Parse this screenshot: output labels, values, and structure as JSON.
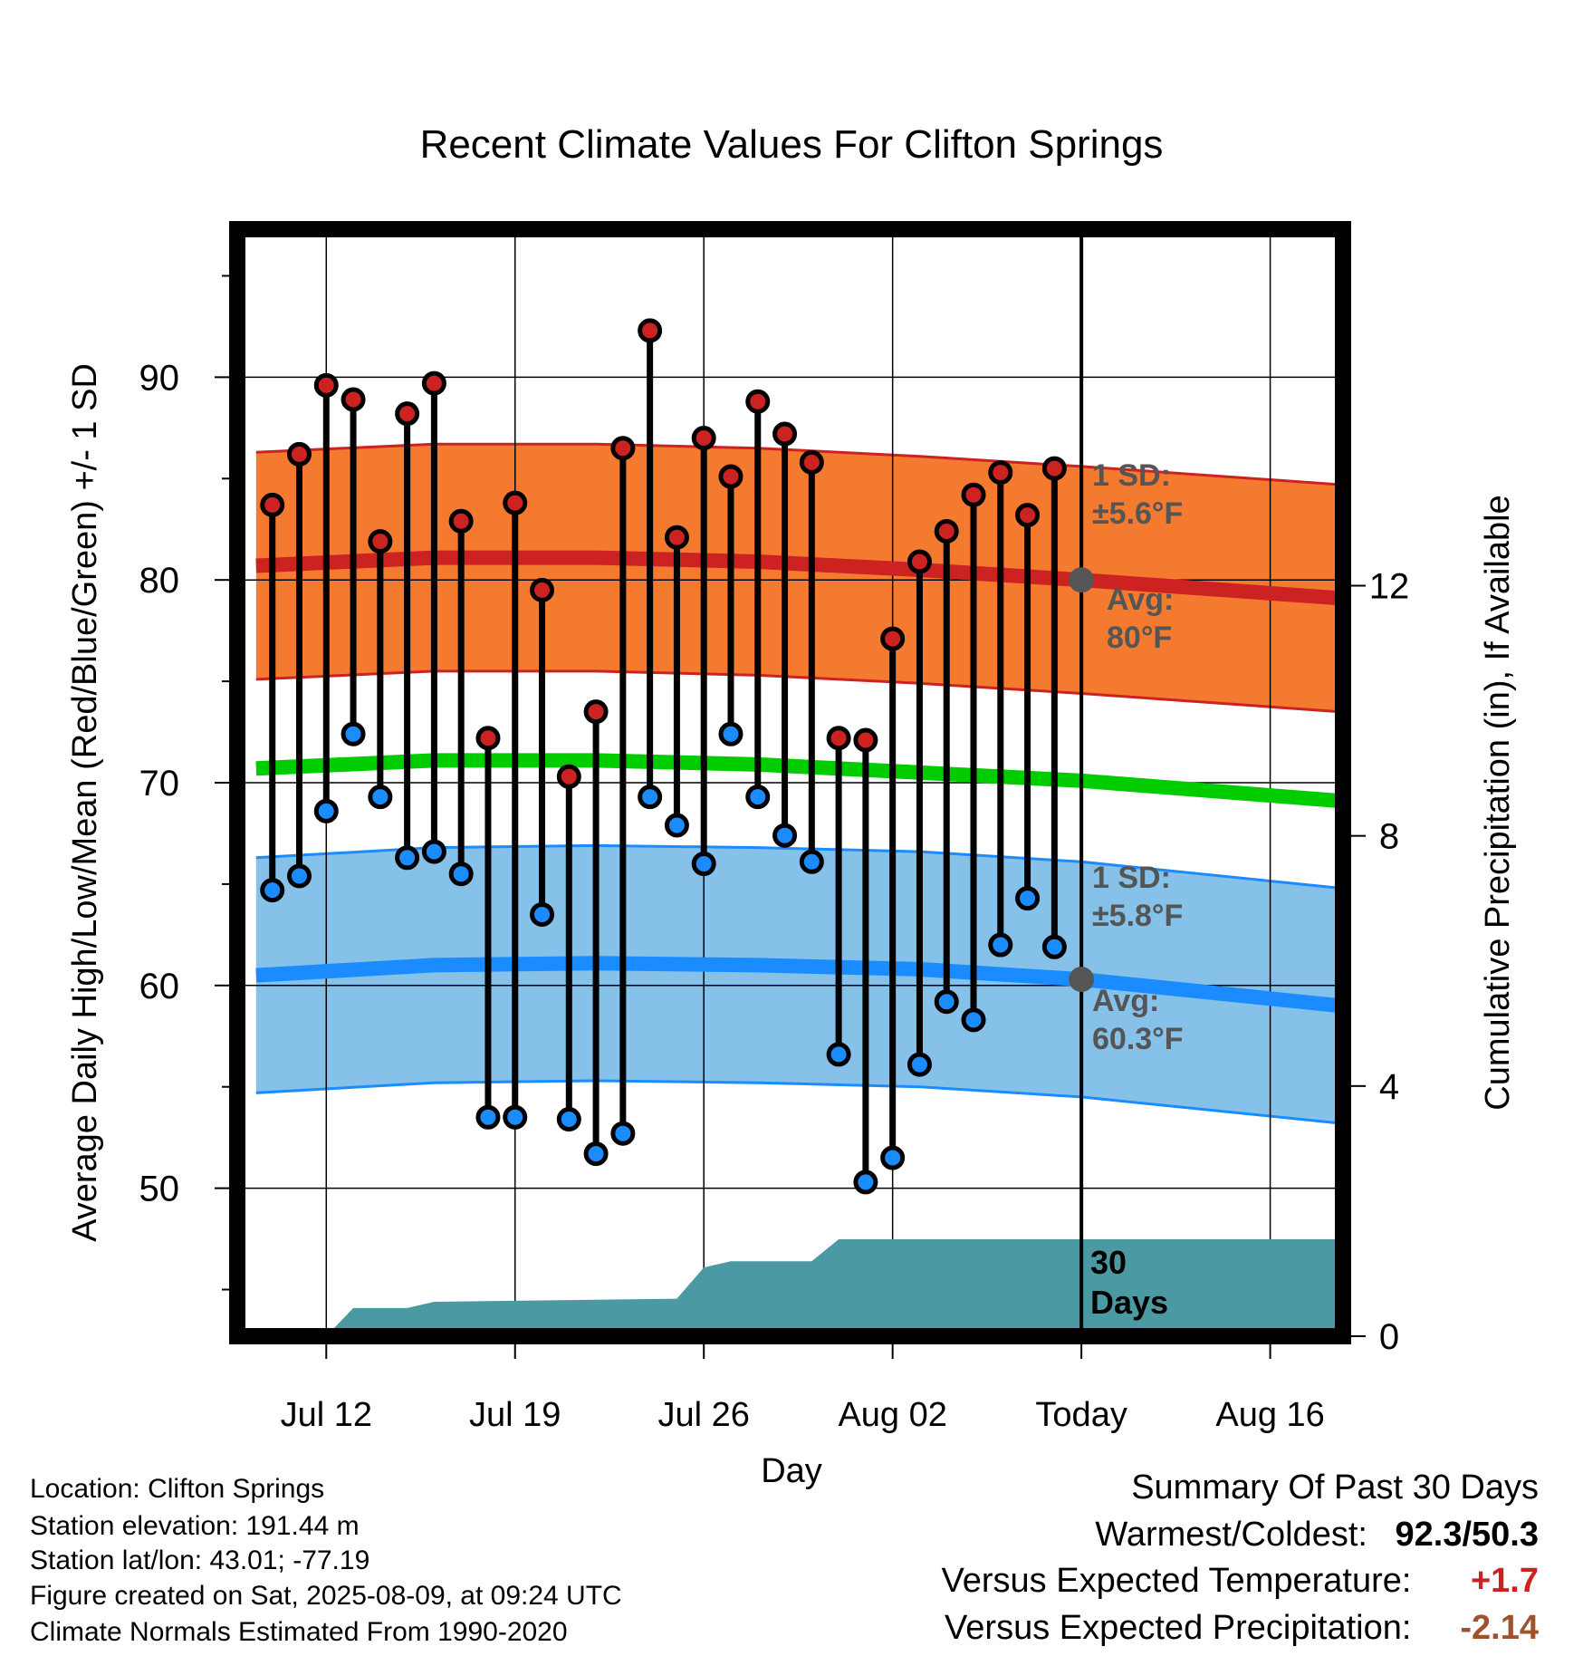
{
  "title": "Recent Climate Values For Clifton Springs",
  "xlabel": "Day",
  "ylabel_left": "Average Daily High/Low/Mean (Red/Blue/Green) +/- 1 SD",
  "ylabel_right": "Cumulative Precipitation (in), If Available",
  "annotations": {
    "high_sd_line1": "1 SD:",
    "high_sd_line2": "±5.6°F",
    "high_avg_line1": "Avg:",
    "high_avg_line2": "80°F",
    "low_sd_line1": "1 SD:",
    "low_sd_line2": "±5.8°F",
    "low_avg_line1": "Avg:",
    "low_avg_line2": "60.3°F",
    "days_line1": "30",
    "days_line2": "Days"
  },
  "footer": {
    "location": "Location: Clifton Springs",
    "elevation": "Station elevation: 191.44 m",
    "latlon": "Station lat/lon: 43.01; -77.19",
    "created": "Figure created on Sat, 2025-08-09, at 09:24 UTC",
    "normals": "Climate Normals Estimated From 1990-2020"
  },
  "summary": {
    "heading": "Summary Of Past 30 Days",
    "warm_cold_label": "Warmest/Coldest:",
    "warm_cold_value": "92.3/50.3",
    "temp_label": "Versus Expected Temperature:",
    "temp_value": "+1.7",
    "precip_label": "Versus Expected Precipitation:",
    "precip_value": "-2.14"
  },
  "colors": {
    "high_band": "#f47a30",
    "high_line": "#cc2222",
    "low_band": "#85c1e8",
    "low_line": "#1a8cff",
    "mean_line": "#00cc00",
    "precip_fill": "#4b9aa3",
    "high_dot": "#cc2222",
    "low_dot": "#1a8cff",
    "avg_dot": "#555555",
    "annotation_text": "#555555",
    "temp_value": "#cc2222",
    "precip_value": "#a0522d"
  },
  "chart_data": {
    "type": "line",
    "x_unit": "day (0 = Jul 12, 2025)",
    "xlim": [
      -3.3,
      37.7
    ],
    "ylim": [
      42.7,
      97.3
    ],
    "yticks": [
      50,
      60,
      70,
      80,
      90
    ],
    "y2lim": [
      0,
      17.7
    ],
    "y2ticks": [
      0,
      4,
      8,
      12
    ],
    "xticks": [
      {
        "day": 0,
        "label": "Jul 12"
      },
      {
        "day": 7,
        "label": "Jul 19"
      },
      {
        "day": 14,
        "label": "Jul 26"
      },
      {
        "day": 21,
        "label": "Aug 02"
      },
      {
        "day": 28,
        "label": "Today"
      },
      {
        "day": 35,
        "label": "Aug 16"
      }
    ],
    "today_day": 28,
    "grid": true,
    "daily_highs": [
      {
        "day": -2,
        "value": 83.7
      },
      {
        "day": -1,
        "value": 86.2
      },
      {
        "day": 0,
        "value": 89.6
      },
      {
        "day": 1,
        "value": 88.9
      },
      {
        "day": 2,
        "value": 81.9
      },
      {
        "day": 3,
        "value": 88.2
      },
      {
        "day": 4,
        "value": 89.7
      },
      {
        "day": 5,
        "value": 82.9
      },
      {
        "day": 6,
        "value": 72.2
      },
      {
        "day": 7,
        "value": 83.8
      },
      {
        "day": 8,
        "value": 79.5
      },
      {
        "day": 9,
        "value": 70.3
      },
      {
        "day": 10,
        "value": 73.5
      },
      {
        "day": 11,
        "value": 86.5
      },
      {
        "day": 12,
        "value": 92.3
      },
      {
        "day": 13,
        "value": 82.1
      },
      {
        "day": 14,
        "value": 87.0
      },
      {
        "day": 15,
        "value": 85.1
      },
      {
        "day": 16,
        "value": 88.8
      },
      {
        "day": 17,
        "value": 87.2
      },
      {
        "day": 18,
        "value": 85.8
      },
      {
        "day": 19,
        "value": 72.2
      },
      {
        "day": 20,
        "value": 72.1
      },
      {
        "day": 21,
        "value": 77.1
      },
      {
        "day": 22,
        "value": 80.9
      },
      {
        "day": 23,
        "value": 82.4
      },
      {
        "day": 24,
        "value": 84.2
      },
      {
        "day": 25,
        "value": 85.3
      },
      {
        "day": 26,
        "value": 83.2
      },
      {
        "day": 27,
        "value": 85.5
      }
    ],
    "daily_lows": [
      {
        "day": -2,
        "value": 64.7
      },
      {
        "day": -1,
        "value": 65.4
      },
      {
        "day": 0,
        "value": 68.6
      },
      {
        "day": 1,
        "value": 72.4
      },
      {
        "day": 2,
        "value": 69.3
      },
      {
        "day": 3,
        "value": 66.3
      },
      {
        "day": 4,
        "value": 66.6
      },
      {
        "day": 5,
        "value": 65.5
      },
      {
        "day": 6,
        "value": 53.5
      },
      {
        "day": 7,
        "value": 53.5
      },
      {
        "day": 8,
        "value": 63.5
      },
      {
        "day": 9,
        "value": 53.4
      },
      {
        "day": 10,
        "value": 51.7
      },
      {
        "day": 11,
        "value": 52.7
      },
      {
        "day": 12,
        "value": 69.3
      },
      {
        "day": 13,
        "value": 67.9
      },
      {
        "day": 14,
        "value": 66.0
      },
      {
        "day": 15,
        "value": 72.4
      },
      {
        "day": 16,
        "value": 69.3
      },
      {
        "day": 17,
        "value": 67.4
      },
      {
        "day": 18,
        "value": 66.1
      },
      {
        "day": 19,
        "value": 56.6
      },
      {
        "day": 20,
        "value": 50.3
      },
      {
        "day": 21,
        "value": 51.5
      },
      {
        "day": 22,
        "value": 56.1
      },
      {
        "day": 23,
        "value": 59.2
      },
      {
        "day": 24,
        "value": 58.3
      },
      {
        "day": 25,
        "value": 62.0
      },
      {
        "day": 26,
        "value": 64.3
      },
      {
        "day": 27,
        "value": 61.9
      }
    ],
    "normal_high": [
      {
        "day": -2.6,
        "value": 80.7
      },
      {
        "day": 4,
        "value": 81.1
      },
      {
        "day": 10,
        "value": 81.1
      },
      {
        "day": 16,
        "value": 80.9
      },
      {
        "day": 22,
        "value": 80.5
      },
      {
        "day": 28,
        "value": 80.0
      },
      {
        "day": 37.6,
        "value": 79.1
      }
    ],
    "normal_high_sd": 5.6,
    "normal_mean": [
      {
        "day": -2.6,
        "value": 70.7
      },
      {
        "day": 4,
        "value": 71.1
      },
      {
        "day": 10,
        "value": 71.1
      },
      {
        "day": 16,
        "value": 70.9
      },
      {
        "day": 22,
        "value": 70.5
      },
      {
        "day": 28,
        "value": 70.1
      },
      {
        "day": 37.6,
        "value": 69.1
      }
    ],
    "normal_low": [
      {
        "day": -2.6,
        "value": 60.5
      },
      {
        "day": 4,
        "value": 61.0
      },
      {
        "day": 10,
        "value": 61.1
      },
      {
        "day": 16,
        "value": 61.0
      },
      {
        "day": 22,
        "value": 60.8
      },
      {
        "day": 28,
        "value": 60.3
      },
      {
        "day": 37.6,
        "value": 59.0
      }
    ],
    "normal_low_sd": 5.8,
    "avg_markers": [
      {
        "day": 28,
        "value": 80.0
      },
      {
        "day": 28,
        "value": 60.3
      }
    ],
    "cumulative_precip": [
      {
        "day": 0,
        "value": 0.0
      },
      {
        "day": 1,
        "value": 0.45
      },
      {
        "day": 3,
        "value": 0.45
      },
      {
        "day": 4,
        "value": 0.55
      },
      {
        "day": 13,
        "value": 0.6
      },
      {
        "day": 14,
        "value": 1.1
      },
      {
        "day": 15,
        "value": 1.2
      },
      {
        "day": 18,
        "value": 1.2
      },
      {
        "day": 19,
        "value": 1.55
      },
      {
        "day": 37.6,
        "value": 1.55
      }
    ]
  }
}
